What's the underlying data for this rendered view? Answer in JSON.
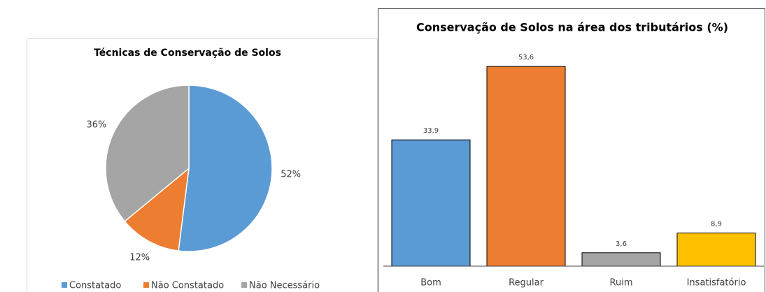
{
  "chart_data": [
    {
      "type": "pie",
      "title": "Técnicas de Conservação de Solos",
      "categories": [
        "Constatado",
        "Não Constatado",
        "Não Necessário"
      ],
      "values": [
        52,
        12,
        36
      ],
      "value_labels": [
        "52%",
        "12%",
        "36%"
      ],
      "colors": [
        "#5b9bd5",
        "#ed7d31",
        "#a5a5a5"
      ],
      "legend": "bottom"
    },
    {
      "type": "bar",
      "title": "Conservação de Solos na área dos tributários (%)",
      "categories": [
        "Bom",
        "Regular",
        "Ruim",
        "Insatisfatório"
      ],
      "values": [
        33.9,
        53.6,
        3.6,
        8.9
      ],
      "value_labels": [
        "33,9",
        "53,6",
        "3,6",
        "8,9"
      ],
      "colors": [
        "#5b9bd5",
        "#ed7d31",
        "#a5a5a5",
        "#ffc000"
      ],
      "ylim": [
        0,
        60
      ]
    }
  ]
}
